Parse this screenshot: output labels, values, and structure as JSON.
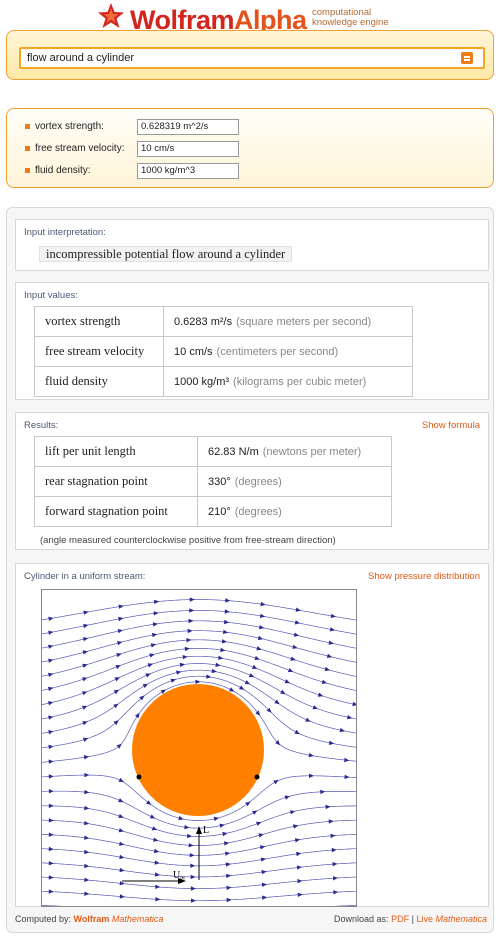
{
  "brand": {
    "wolfram": "Wolfram",
    "alpha": "Alpha",
    "tagline_line1": "computational",
    "tagline_line2": "knowledge engine"
  },
  "query": {
    "value": "flow around a cylinder"
  },
  "assumptions": [
    {
      "label": "vortex strength:",
      "value": "0.628319 m^2/s"
    },
    {
      "label": "free stream velocity:",
      "value": "10 cm/s"
    },
    {
      "label": "fluid density:",
      "value": "1000 kg/m^3"
    }
  ],
  "interpretation": {
    "title": "Input interpretation:",
    "text": "incompressible potential flow around a cylinder"
  },
  "input_values": {
    "title": "Input values:",
    "rows": [
      {
        "label": "vortex strength",
        "value": "0.6283",
        "unit": "m²/s",
        "unit_desc": "(square meters per second)"
      },
      {
        "label": "free stream velocity",
        "value": "10",
        "unit": "cm/s",
        "unit_desc": "(centimeters per second)"
      },
      {
        "label": "fluid density",
        "value": "1000",
        "unit": "kg/m³",
        "unit_desc": "(kilograms per cubic meter)"
      }
    ]
  },
  "results": {
    "title": "Results:",
    "action": "Show formula",
    "rows": [
      {
        "label": "lift per unit length",
        "value": "62.83",
        "unit": "N/m",
        "unit_desc": "(newtons per meter)"
      },
      {
        "label": "rear stagnation point",
        "value": "330°",
        "unit": "",
        "unit_desc": "(degrees)"
      },
      {
        "label": "forward stagnation point",
        "value": "210°",
        "unit": "",
        "unit_desc": "(degrees)"
      }
    ],
    "note": "(angle measured counterclockwise positive from free-stream direction)"
  },
  "plot": {
    "title": "Cylinder in a uniform stream:",
    "action": "Show pressure distribution",
    "lift_label": "L",
    "stream_label": "U",
    "stream_sub": "∞",
    "colors": {
      "cylinder": "#ff8000",
      "streamlines": "#5a5ab8",
      "arrows": "#2a2a90"
    }
  },
  "footer": {
    "computed_by": "Computed by:",
    "wolfram": "Wolfram",
    "mathematica": "Mathematica",
    "download_as": "Download as:",
    "pdf": "PDF",
    "separator": "|",
    "live": "Live",
    "live_mathematica": "Mathematica"
  }
}
